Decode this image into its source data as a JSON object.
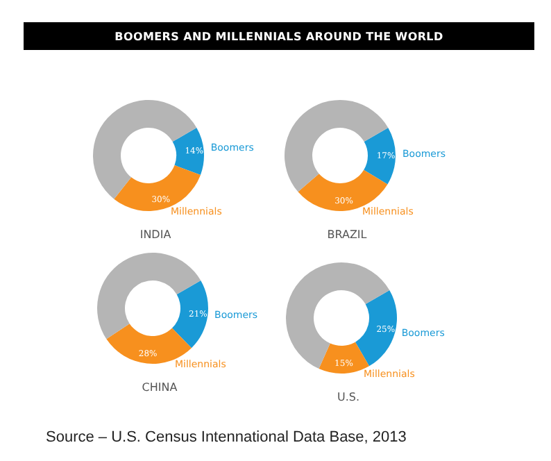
{
  "chart_data": [
    {
      "type": "donut",
      "title": "BOOMERS AND MILLENNIALS AROUND THE WORLD",
      "xlabel": "INDIA",
      "categories": [
        "Boomers",
        "Millennials",
        null
      ],
      "values": [
        14,
        30,
        56
      ],
      "colors": [
        "#1a9ad6",
        "#f7901e",
        "#b5b5b5"
      ],
      "value_labels": [
        "14%",
        "30%",
        null
      ]
    },
    {
      "type": "donut",
      "xlabel": "BRAZIL",
      "categories": [
        "Boomers",
        "Millennials",
        null
      ],
      "values": [
        17,
        30,
        53
      ],
      "colors": [
        "#1a9ad6",
        "#f7901e",
        "#b5b5b5"
      ],
      "value_labels": [
        "17%",
        "30%",
        null
      ]
    },
    {
      "type": "donut",
      "xlabel": "CHINA",
      "categories": [
        "Boomers",
        "Millennials",
        null
      ],
      "values": [
        21,
        28,
        51
      ],
      "colors": [
        "#1a9ad6",
        "#f7901e",
        "#b5b5b5"
      ],
      "value_labels": [
        "21%",
        "28%",
        null
      ]
    },
    {
      "type": "donut",
      "xlabel": "U.S.",
      "categories": [
        "Boomers",
        "Millennials",
        null
      ],
      "values": [
        25,
        15,
        60
      ],
      "colors": [
        "#1a9ad6",
        "#f7901e",
        "#b5b5b5"
      ],
      "value_labels": [
        "25%",
        "15%",
        null
      ],
      "annotations": [
        "Source – U.S. Census Intennational Data Base, 2013"
      ]
    }
  ]
}
